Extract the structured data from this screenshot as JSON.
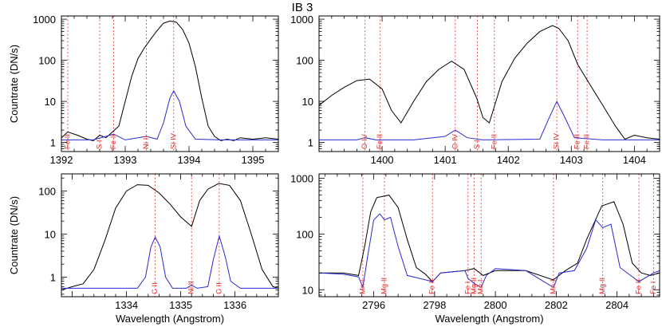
{
  "title": "IB 3",
  "colors": {
    "frame": "#000000",
    "observed": "#000000",
    "fit": "#2a2ad0",
    "marker": "#e03030"
  },
  "chart_data": [
    {
      "type": "line",
      "yscale": "log",
      "xlim": [
        1392.0,
        1395.4
      ],
      "ylim": [
        0.6,
        1200
      ],
      "ylabel": "Countrate (DN/s)",
      "xlabel": "",
      "xticks": [
        1392,
        1393,
        1394,
        1395
      ],
      "yticks": [
        1,
        10,
        100,
        1000
      ],
      "markers": [
        {
          "x": 1392.1,
          "label": "Fe II"
        },
        {
          "x": 1392.6,
          "label": "S I"
        },
        {
          "x": 1392.82,
          "label": "Fe II"
        },
        {
          "x": 1393.33,
          "label": "Ni II"
        },
        {
          "x": 1393.76,
          "label": "Si IV"
        }
      ],
      "series": [
        {
          "role": "observed",
          "x": [
            1392.0,
            1392.1,
            1392.25,
            1392.4,
            1392.5,
            1392.6,
            1392.7,
            1392.8,
            1392.9,
            1393.0,
            1393.1,
            1393.2,
            1393.3,
            1393.4,
            1393.5,
            1393.6,
            1393.7,
            1393.8,
            1393.9,
            1394.0,
            1394.1,
            1394.2,
            1394.3,
            1394.4,
            1394.5,
            1394.6,
            1394.7,
            1394.8,
            1395.0,
            1395.2,
            1395.4
          ],
          "y": [
            1.3,
            1.8,
            1.5,
            1.2,
            1.1,
            1.5,
            1.3,
            1.8,
            2.5,
            10,
            40,
            110,
            200,
            330,
            530,
            800,
            900,
            850,
            560,
            260,
            70,
            12,
            2.5,
            1.4,
            1.1,
            1.2,
            1.1,
            1.3,
            1.2,
            1.3,
            1.2
          ]
        },
        {
          "role": "fit",
          "x": [
            1392.0,
            1392.5,
            1392.82,
            1393.0,
            1393.33,
            1393.5,
            1393.6,
            1393.7,
            1393.76,
            1393.85,
            1393.95,
            1394.1,
            1394.5,
            1395.4
          ],
          "y": [
            1.15,
            1.15,
            1.6,
            1.15,
            1.4,
            1.2,
            3,
            12,
            18,
            10,
            2.5,
            1.2,
            1.15,
            1.15
          ]
        }
      ]
    },
    {
      "type": "line",
      "yscale": "log",
      "xlim": [
        1399.0,
        1404.4
      ],
      "ylim": [
        0.6,
        1200
      ],
      "ylabel": "",
      "xlabel": "",
      "xticks": [
        1400,
        1401,
        1402,
        1403,
        1404
      ],
      "yticks": [
        1,
        10,
        100,
        1000
      ],
      "markers": [
        {
          "x": 1399.73,
          "label": "O IV"
        },
        {
          "x": 1399.97,
          "label": "Fe II"
        },
        {
          "x": 1401.16,
          "label": "O IV"
        },
        {
          "x": 1401.51,
          "label": "S I"
        },
        {
          "x": 1401.78,
          "label": "Fe II"
        },
        {
          "x": 1402.77,
          "label": "Si IV"
        },
        {
          "x": 1403.1,
          "label": "Fe II"
        },
        {
          "x": 1403.25,
          "label": "Fe II"
        }
      ],
      "series": [
        {
          "role": "observed",
          "x": [
            1399.0,
            1399.2,
            1399.4,
            1399.6,
            1399.8,
            1400.0,
            1400.15,
            1400.3,
            1400.5,
            1400.7,
            1400.9,
            1401.1,
            1401.3,
            1401.5,
            1401.6,
            1401.7,
            1401.9,
            1402.1,
            1402.3,
            1402.5,
            1402.7,
            1402.8,
            1402.95,
            1403.1,
            1403.3,
            1403.5,
            1403.7,
            1403.85,
            1404.0,
            1404.2,
            1404.4
          ],
          "y": [
            8,
            14,
            22,
            32,
            35,
            20,
            6,
            3,
            10,
            30,
            60,
            95,
            60,
            12,
            4,
            3,
            30,
            110,
            260,
            500,
            700,
            600,
            300,
            80,
            25,
            8,
            2.5,
            1.2,
            1.5,
            1.3,
            1.2
          ]
        },
        {
          "role": "fit",
          "x": [
            1399.0,
            1399.6,
            1399.73,
            1399.9,
            1400.5,
            1401.0,
            1401.16,
            1401.35,
            1401.6,
            1402.5,
            1402.65,
            1402.77,
            1402.9,
            1403.05,
            1403.5,
            1404.4
          ],
          "y": [
            1.15,
            1.15,
            1.3,
            1.15,
            1.15,
            1.4,
            2,
            1.3,
            1.15,
            1.2,
            4,
            10,
            4,
            1.3,
            1.15,
            1.15
          ]
        }
      ]
    },
    {
      "type": "line",
      "yscale": "log",
      "xlim": [
        1332.8,
        1336.8
      ],
      "ylim": [
        0.35,
        250
      ],
      "ylabel": "Countrate (DN/s)",
      "xlabel": "Wavelength (Angstrom)",
      "xticks": [
        1334,
        1335,
        1336
      ],
      "yticks": [
        1,
        10,
        100
      ],
      "markers": [
        {
          "x": 1334.53,
          "label": "C II"
        },
        {
          "x": 1335.2,
          "label": "Ni II"
        },
        {
          "x": 1335.71,
          "label": "C II"
        }
      ],
      "series": [
        {
          "role": "observed",
          "x": [
            1332.8,
            1333.0,
            1333.2,
            1333.4,
            1333.6,
            1333.8,
            1334.0,
            1334.2,
            1334.4,
            1334.6,
            1334.8,
            1335.0,
            1335.2,
            1335.35,
            1335.5,
            1335.7,
            1335.9,
            1336.1,
            1336.3,
            1336.5,
            1336.7,
            1336.8
          ],
          "y": [
            0.5,
            0.6,
            0.7,
            1.5,
            7,
            40,
            100,
            140,
            135,
            90,
            50,
            25,
            15,
            60,
            110,
            150,
            135,
            60,
            10,
            1.5,
            0.6,
            0.55
          ]
        },
        {
          "role": "fit",
          "x": [
            1332.8,
            1334.2,
            1334.35,
            1334.45,
            1334.53,
            1334.62,
            1334.72,
            1334.85,
            1335.1,
            1335.2,
            1335.3,
            1335.5,
            1335.6,
            1335.71,
            1335.82,
            1335.92,
            1336.1,
            1336.8
          ],
          "y": [
            0.55,
            0.55,
            1,
            5,
            8.5,
            5,
            1,
            0.55,
            0.55,
            0.65,
            0.55,
            0.6,
            2.5,
            9,
            3,
            0.8,
            0.55,
            0.55
          ]
        }
      ]
    },
    {
      "type": "line",
      "yscale": "log",
      "xlim": [
        2794.2,
        2805.4
      ],
      "ylim": [
        7.5,
        1200
      ],
      "ylabel": "",
      "xlabel": "Wavelength (Angstrom)",
      "xticks": [
        2796,
        2798,
        2800,
        2802,
        2804
      ],
      "yticks": [
        10,
        100,
        1000
      ],
      "markers": [
        {
          "x": 2795.64,
          "label": "Mn I"
        },
        {
          "x": 2796.35,
          "label": "Mg II"
        },
        {
          "x": 2797.93,
          "label": "Fe II"
        },
        {
          "x": 2799.1,
          "label": "Fe I"
        },
        {
          "x": 2799.3,
          "label": "Mg II"
        },
        {
          "x": 2799.53,
          "label": "Mn I"
        },
        {
          "x": 2801.91,
          "label": "Mn I"
        },
        {
          "x": 2803.53,
          "label": "Mg II"
        },
        {
          "x": 2804.72,
          "label": "Fe II"
        },
        {
          "x": 2805.2,
          "label": "Fe I"
        }
      ],
      "series": [
        {
          "role": "observed",
          "x": [
            2794.2,
            2795.0,
            2795.5,
            2795.7,
            2795.9,
            2796.1,
            2796.5,
            2796.8,
            2797.1,
            2797.4,
            2797.7,
            2797.93,
            2798.2,
            2799.0,
            2799.3,
            2799.6,
            2800.0,
            2801.0,
            2801.9,
            2802.3,
            2802.7,
            2803.0,
            2803.5,
            2803.9,
            2804.2,
            2804.5,
            2804.8,
            2805.1,
            2805.4
          ],
          "y": [
            20,
            20,
            18,
            60,
            250,
            450,
            500,
            300,
            80,
            25,
            19,
            14,
            20,
            22,
            24,
            18,
            22,
            22,
            15,
            22,
            30,
            80,
            320,
            380,
            150,
            30,
            20,
            18,
            20
          ]
        },
        {
          "role": "fit",
          "x": [
            2794.2,
            2795.0,
            2795.5,
            2795.64,
            2795.8,
            2796.0,
            2796.2,
            2796.35,
            2796.55,
            2796.8,
            2797.1,
            2797.5,
            2797.93,
            2798.2,
            2799.0,
            2799.1,
            2799.3,
            2799.53,
            2799.7,
            2800.0,
            2801.0,
            2801.91,
            2802.1,
            2802.6,
            2803.0,
            2803.3,
            2803.53,
            2803.8,
            2804.1,
            2804.72,
            2805.2,
            2805.4
          ],
          "y": [
            20,
            19,
            17,
            11,
            40,
            180,
            230,
            180,
            200,
            60,
            18,
            16,
            14,
            20,
            22,
            16,
            13,
            11,
            18,
            24,
            22,
            11,
            20,
            22,
            55,
            180,
            130,
            150,
            25,
            14,
            20,
            22
          ]
        }
      ]
    }
  ]
}
